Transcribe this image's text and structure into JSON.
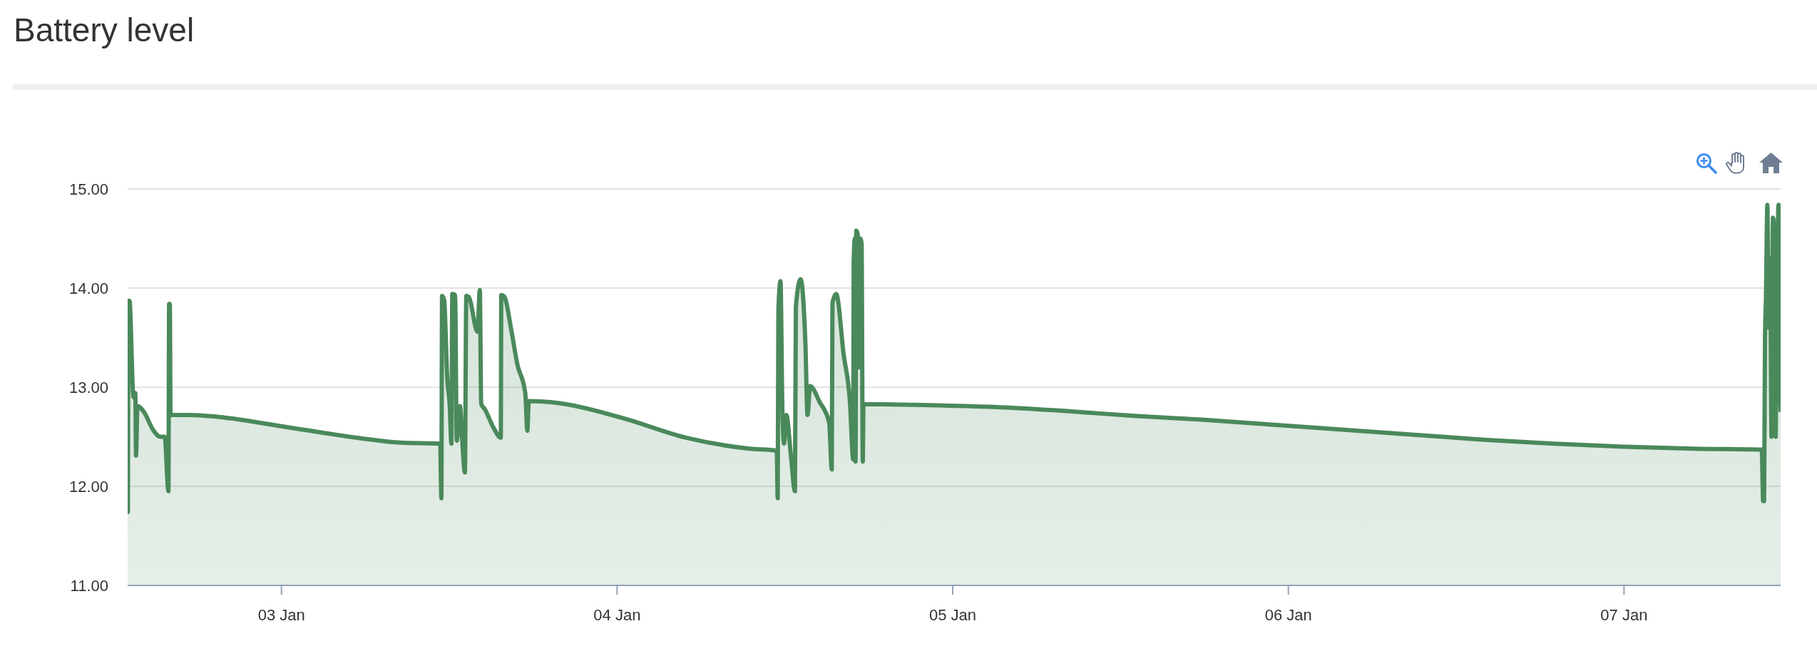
{
  "chart_data": {
    "type": "area",
    "title": "Battery level",
    "x": [
      "--01-02T13:00",
      "--01-02T13:01",
      "--01-02T13:03",
      "--01-02T13:08",
      "--01-02T13:25",
      "--01-02T13:33",
      "--01-02T13:36",
      "--01-02T13:42",
      "--01-02T14:10",
      "--01-02T14:49",
      "--01-02T15:20",
      "--01-02T15:39",
      "--01-02T15:55",
      "--01-02T15:58",
      "--01-02T16:01",
      "--01-02T16:04",
      "--01-02T17:25",
      "--01-02T19:30",
      "--01-03T00:42",
      "--01-03T05:54",
      "--01-03T08:30",
      "--01-03T11:21",
      "--01-03T11:26",
      "--01-03T11:29",
      "--01-03T11:38",
      "--01-03T11:51",
      "--01-03T12:02",
      "--01-03T12:09",
      "--01-03T12:13",
      "--01-03T12:25",
      "--01-03T12:32",
      "--01-03T12:46",
      "--01-03T12:54",
      "--01-03T13:07",
      "--01-03T13:13",
      "--01-03T13:24",
      "--01-03T14:01",
      "--01-03T14:11",
      "--01-03T14:17",
      "--01-03T14:32",
      "--01-03T15:10",
      "--01-03T15:41",
      "--01-03T15:43",
      "--01-03T15:57",
      "--01-03T16:25",
      "--01-03T16:52",
      "--01-03T17:26",
      "--01-03T17:35",
      "--01-03T17:41",
      "--01-03T19:49",
      "--01-04T00:22",
      "--01-04T04:56",
      "--01-04T09:29",
      "--01-04T11:25",
      "--01-04T11:29",
      "--01-04T11:32",
      "--01-04T11:41",
      "--01-04T11:49",
      "--01-04T11:56",
      "--01-04T12:06",
      "--01-04T12:26",
      "--01-04T12:43",
      "--01-04T12:47",
      "--01-04T13:07",
      "--01-04T13:28",
      "--01-04T13:37",
      "--01-04T13:48",
      "--01-04T14:29",
      "--01-04T15:10",
      "--01-04T15:21",
      "--01-04T15:24",
      "--01-04T15:40",
      "--01-04T16:12",
      "--01-04T16:39",
      "--01-04T16:53",
      "--01-04T16:55",
      "--01-04T17:00",
      "--01-04T17:03",
      "--01-04T17:06",
      "--01-04T17:12",
      "--01-04T17:18",
      "--01-04T17:23",
      "--01-04T17:29",
      "--01-04T17:34",
      "--01-04T17:37",
      "--01-04T22:00",
      "--01-05T03:00",
      "--01-05T08:00",
      "--01-05T13:00",
      "--01-05T18:00",
      "--01-05T23:00",
      "--01-06T04:00",
      "--01-06T09:00",
      "--01-06T14:00",
      "--01-06T19:00",
      "--01-07T00:00",
      "--01-07T05:00",
      "--01-07T09:51",
      "--01-07T09:57",
      "--01-07T10:01",
      "--01-07T10:05",
      "--01-07T10:09",
      "--01-07T10:15",
      "--01-07T10:21",
      "--01-07T10:27",
      "--01-07T10:33",
      "--01-07T10:39",
      "--01-07T10:45",
      "--01-07T10:51",
      "--01-07T10:57",
      "--01-07T11:03",
      "--01-07T11:07",
      "--01-07T11:12"
    ],
    "series": [
      {
        "color": "#4a895b",
        "values": [
          12.28,
          11.74,
          13.87,
          13.87,
          12.9,
          12.94,
          12.31,
          12.81,
          12.75,
          12.57,
          12.5,
          12.5,
          11.95,
          13.84,
          13.84,
          12.72,
          12.72,
          12.7,
          12.59,
          12.48,
          12.44,
          12.43,
          11.88,
          13.92,
          13.88,
          13.1,
          12.81,
          12.43,
          13.94,
          13.93,
          12.46,
          12.81,
          12.52,
          12.14,
          13.92,
          13.91,
          13.56,
          13.98,
          12.83,
          12.78,
          12.59,
          12.49,
          13.93,
          13.91,
          13.59,
          13.23,
          12.94,
          12.56,
          12.86,
          12.84,
          12.69,
          12.49,
          12.38,
          12.36,
          11.88,
          13.78,
          14.07,
          12.78,
          12.43,
          12.72,
          12.3,
          11.95,
          13.81,
          14.09,
          13.43,
          12.72,
          13.01,
          12.85,
          12.64,
          12.17,
          13.85,
          13.94,
          13.33,
          12.85,
          12.27,
          14.26,
          14.5,
          12.25,
          14.58,
          14.55,
          13.2,
          14.5,
          14.45,
          12.25,
          12.83,
          12.82,
          12.8,
          12.76,
          12.71,
          12.67,
          12.62,
          12.57,
          12.52,
          12.47,
          12.43,
          12.4,
          12.38,
          12.37,
          11.85,
          11.85,
          13.5,
          13.9,
          14.84,
          13.6,
          14.3,
          12.5,
          14.71,
          14.6,
          12.5,
          14.0,
          14.84,
          13.5,
          12.75
        ]
      }
    ],
    "xlim": [
      "--01-02T13:00",
      "--01-07T11:12"
    ],
    "xticks": [
      {
        "value": "--01-03",
        "label": "03 Jan"
      },
      {
        "value": "--01-04",
        "label": "04 Jan"
      },
      {
        "value": "--01-05",
        "label": "05 Jan"
      },
      {
        "value": "--01-06",
        "label": "06 Jan"
      },
      {
        "value": "--01-07",
        "label": "07 Jan"
      }
    ],
    "ylim": [
      11,
      15
    ],
    "yticks": [
      {
        "value": 11,
        "label": "11.00"
      },
      {
        "value": 12,
        "label": "12.00"
      },
      {
        "value": 13,
        "label": "13.00"
      },
      {
        "value": 14,
        "label": "14.00"
      },
      {
        "value": 15,
        "label": "15.00"
      }
    ],
    "grid": "y"
  }
}
